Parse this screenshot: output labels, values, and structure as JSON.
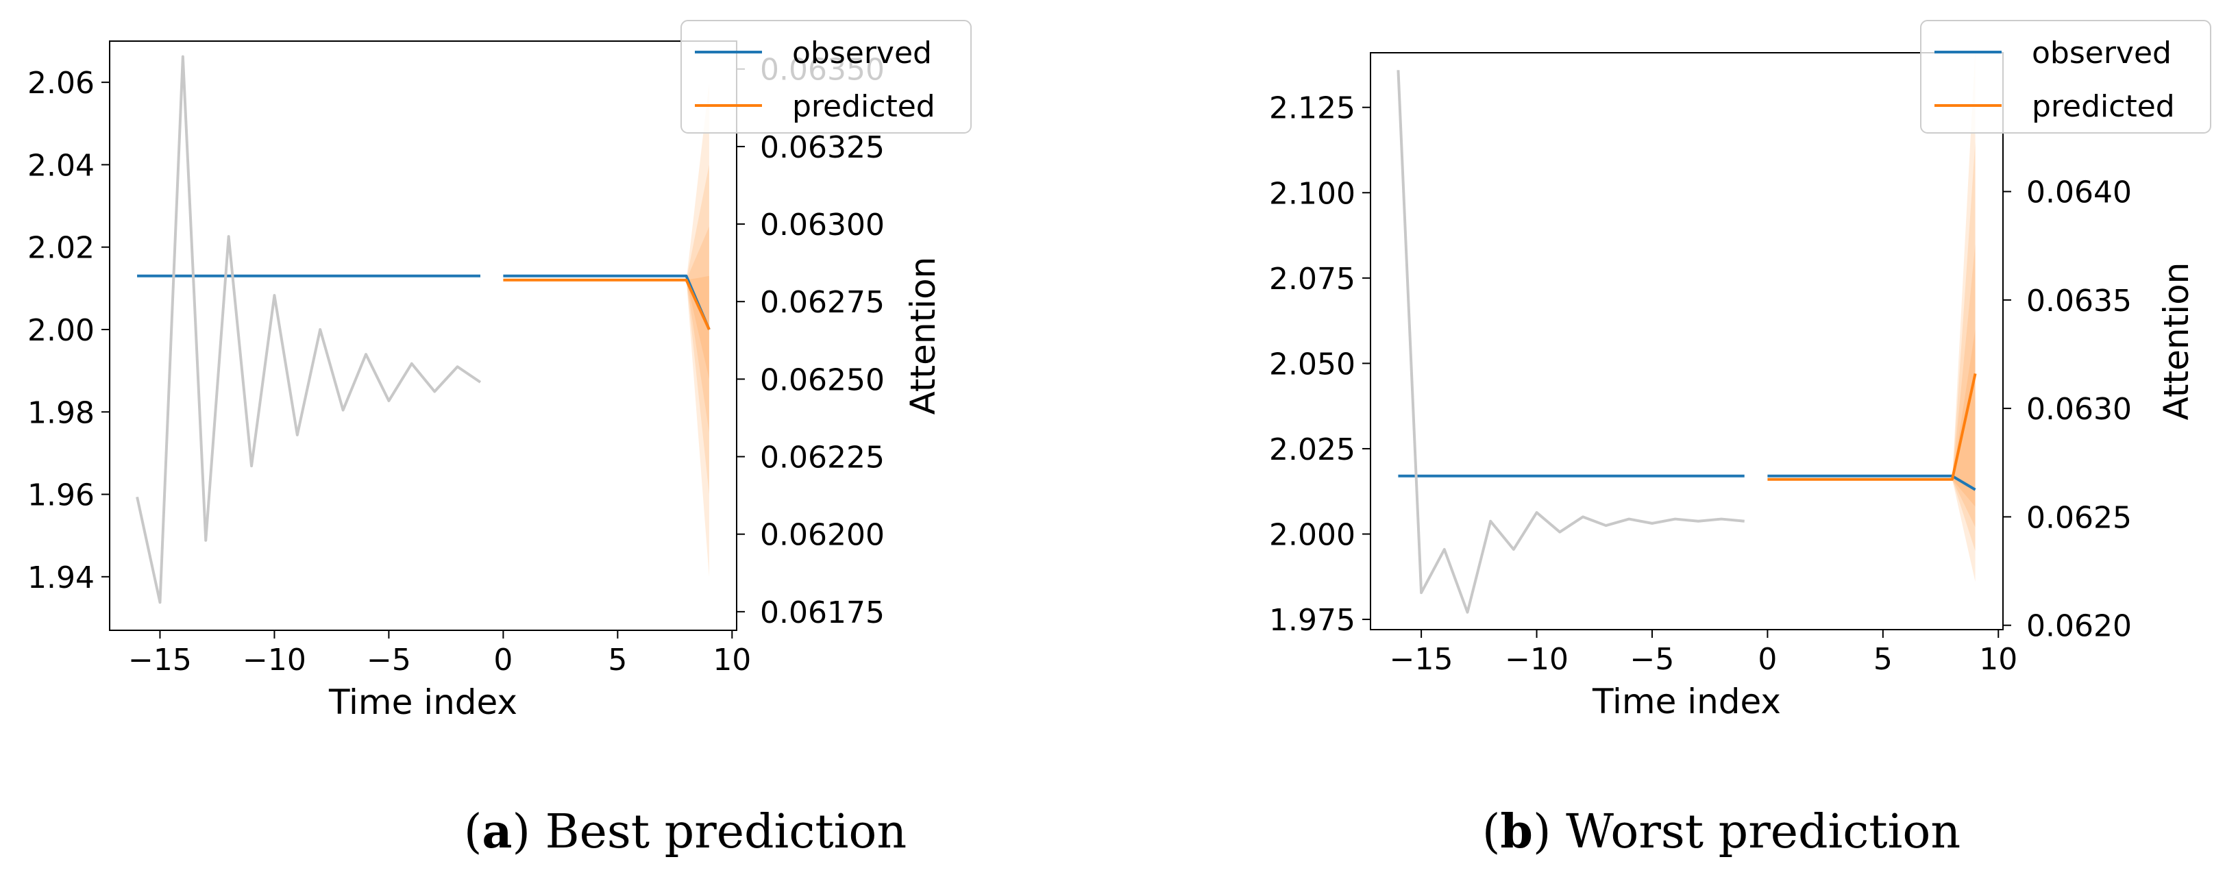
{
  "chart_data": [
    {
      "type": "line",
      "panel_label": "a",
      "caption": "Best prediction",
      "xlabel": "Time index",
      "y2label": "Attention",
      "xlim": [
        -17.2,
        10.2
      ],
      "xticks": [
        -15,
        -10,
        -5,
        0,
        5,
        10
      ],
      "xtick_labels": [
        "−15",
        "−10",
        "−5",
        "0",
        "5",
        "10"
      ],
      "ylim": [
        1.927,
        2.07
      ],
      "yticks": [
        1.94,
        1.96,
        1.98,
        2.0,
        2.02,
        2.04,
        2.06
      ],
      "ytick_labels": [
        "1.94",
        "1.96",
        "1.98",
        "2.00",
        "2.02",
        "2.04",
        "2.06"
      ],
      "y2lim": [
        0.06169,
        0.06359
      ],
      "y2ticks": [
        0.06175,
        0.062,
        0.06225,
        0.0625,
        0.06275,
        0.063,
        0.06325,
        0.0635
      ],
      "y2tick_labels": [
        "0.06175",
        "0.06200",
        "0.06225",
        "0.06250",
        "0.06275",
        "0.06300",
        "0.06325",
        "0.06350"
      ],
      "legend": {
        "position": "top-right",
        "entries": [
          "observed",
          "predicted"
        ]
      },
      "colors": {
        "observed": "#1f77b4",
        "predicted": "#ff7f0e",
        "attention": "#c8c8c8",
        "band": "#ff7f0e"
      },
      "series": [
        {
          "name": "observed",
          "axis": "left",
          "segments": [
            {
              "x": [
                -16,
                -1
              ],
              "y": [
                2.013,
                2.013
              ]
            },
            {
              "x": [
                0,
                8,
                9
              ],
              "y": [
                2.013,
                2.013,
                2.0
              ]
            }
          ]
        },
        {
          "name": "predicted",
          "axis": "left",
          "segments": [
            {
              "x": [
                0,
                8,
                9
              ],
              "y": [
                2.012,
                2.012,
                2.0
              ]
            }
          ]
        },
        {
          "name": "attention",
          "axis": "right",
          "segments": [
            {
              "x": [
                -16,
                -15,
                -14,
                -13,
                -12,
                -11,
                -10,
                -9,
                -8,
                -7,
                -6,
                -5,
                -4,
                -3,
                -2,
                -1
              ],
              "y": [
                0.06212,
                0.06178,
                0.06354,
                0.06198,
                0.06296,
                0.06222,
                0.06277,
                0.06232,
                0.06266,
                0.0624,
                0.06258,
                0.06243,
                0.06255,
                0.06246,
                0.06254,
                0.06249
              ]
            }
          ]
        }
      ],
      "bands": [
        {
          "x": [
            8,
            9
          ],
          "lower": [
            2.012,
            1.94
          ],
          "upper": [
            2.012,
            2.06
          ]
        },
        {
          "x": [
            8,
            9
          ],
          "lower": [
            2.012,
            1.96
          ],
          "upper": [
            2.012,
            2.04
          ]
        },
        {
          "x": [
            8,
            9
          ],
          "lower": [
            2.012,
            1.975
          ],
          "upper": [
            2.012,
            2.025
          ]
        },
        {
          "x": [
            8,
            9
          ],
          "lower": [
            2.012,
            1.988
          ],
          "upper": [
            2.012,
            2.013
          ]
        }
      ]
    },
    {
      "type": "line",
      "panel_label": "b",
      "caption": "Worst prediction",
      "xlabel": "Time index",
      "y2label": "Attention",
      "xlim": [
        -17.2,
        10.2
      ],
      "xticks": [
        -15,
        -10,
        -5,
        0,
        5,
        10
      ],
      "xtick_labels": [
        "−15",
        "−10",
        "−5",
        "0",
        "5",
        "10"
      ],
      "ylim": [
        1.972,
        2.141
      ],
      "yticks": [
        1.975,
        2.0,
        2.025,
        2.05,
        2.075,
        2.1,
        2.125
      ],
      "ytick_labels": [
        "1.975",
        "2.000",
        "2.025",
        "2.050",
        "2.075",
        "2.100",
        "2.125"
      ],
      "y2lim": [
        0.06198,
        0.06464
      ],
      "y2ticks": [
        0.062,
        0.0625,
        0.063,
        0.0635,
        0.064
      ],
      "y2tick_labels": [
        "0.0620",
        "0.0625",
        "0.0630",
        "0.0635",
        "0.0640"
      ],
      "legend": {
        "position": "top-right",
        "entries": [
          "observed",
          "predicted"
        ]
      },
      "colors": {
        "observed": "#1f77b4",
        "predicted": "#ff7f0e",
        "attention": "#c8c8c8",
        "band": "#ff7f0e"
      },
      "series": [
        {
          "name": "observed",
          "axis": "left",
          "segments": [
            {
              "x": [
                -16,
                -1
              ],
              "y": [
                2.017,
                2.017
              ]
            },
            {
              "x": [
                0,
                8,
                9
              ],
              "y": [
                2.017,
                2.017,
                2.013
              ]
            }
          ]
        },
        {
          "name": "predicted",
          "axis": "left",
          "segments": [
            {
              "x": [
                0,
                8,
                9
              ],
              "y": [
                2.016,
                2.016,
                2.047
              ]
            }
          ]
        },
        {
          "name": "attention",
          "axis": "right",
          "segments": [
            {
              "x": [
                -16,
                -15,
                -14,
                -13,
                -12,
                -11,
                -10,
                -9,
                -8,
                -7,
                -6,
                -5,
                -4,
                -3,
                -2,
                -1
              ],
              "y": [
                0.06456,
                0.06215,
                0.06235,
                0.06206,
                0.06248,
                0.06235,
                0.06252,
                0.06243,
                0.0625,
                0.06246,
                0.06249,
                0.06247,
                0.06249,
                0.06248,
                0.06249,
                0.06248
              ]
            }
          ]
        }
      ],
      "bands": [
        {
          "x": [
            8,
            9
          ],
          "lower": [
            2.016,
            1.986
          ],
          "upper": [
            2.016,
            2.142
          ]
        },
        {
          "x": [
            8,
            9
          ],
          "lower": [
            2.016,
            1.995
          ],
          "upper": [
            2.016,
            2.115
          ]
        },
        {
          "x": [
            8,
            9
          ],
          "lower": [
            2.016,
            2.002
          ],
          "upper": [
            2.016,
            2.085
          ]
        },
        {
          "x": [
            8,
            9
          ],
          "lower": [
            2.016,
            2.008
          ],
          "upper": [
            2.016,
            2.06
          ]
        }
      ]
    }
  ]
}
